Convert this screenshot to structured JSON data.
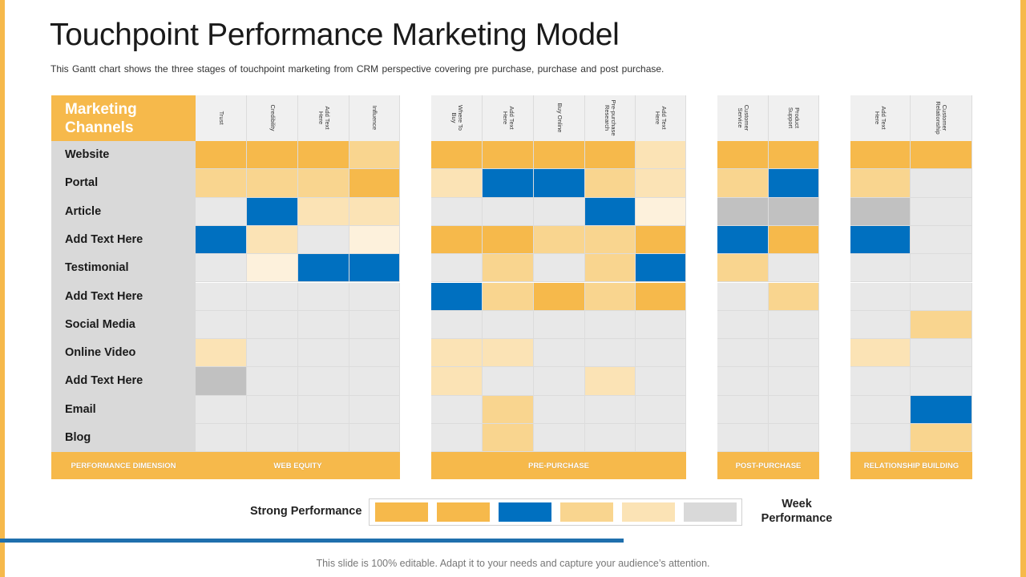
{
  "title": "Touchpoint Performance Marketing Model",
  "subtitle": "This Gantt chart shows the three stages of touchpoint marketing from CRM perspective covering pre purchase, purchase and post purchase.",
  "footer": "This slide is 100% editable. Adapt it to your needs and capture your audience’s attention.",
  "colors": {
    "accent": "#f6b94b",
    "strong_blue": "#0070c0",
    "light_orange": "#f9d58f",
    "pale_orange": "#fbe3b5",
    "cream": "#fdf1dc",
    "light_gray": "#e8e8e8",
    "mid_gray": "#c1c1c1",
    "progress_bar": "#1f6fad"
  },
  "chart_data": {
    "type": "heatmap",
    "corner_label": "Marketing Channels",
    "rows": [
      "Website",
      "Portal",
      "Article",
      "Add Text Here",
      "Testimonial",
      "Add Text Here",
      "Social Media",
      "Online Video",
      "Add Text Here",
      "Email",
      "Blog"
    ],
    "groups": [
      {
        "name": "WEB EQUITY",
        "columns": [
          "Trust",
          "Credibility",
          "Add Text Here",
          "Influence"
        ]
      },
      {
        "name": "PRE-PURCHASE",
        "columns": [
          "Where To Buy",
          "Add Text Here",
          "Buy Online",
          "Pre-purchase Research",
          "Add Text Here"
        ]
      },
      {
        "name": "POST-PURCHASE",
        "columns": [
          "Customer Service",
          "Product Support"
        ]
      },
      {
        "name": "RELATIONSHIP BUILDING",
        "columns": [
          "Add Text Here",
          "Customer Relationship"
        ]
      }
    ],
    "row_footer_label": "PERFORMANCE DIMENSION",
    "level_scale_note": "0 = no color, 1 = orange (strongest), 2 = blue, 3 = light orange, 4 = pale orange, 5 = cream, 6 = gray",
    "cells": [
      [
        1,
        1,
        1,
        3,
        1,
        1,
        1,
        1,
        4,
        1,
        1,
        1,
        1
      ],
      [
        3,
        3,
        3,
        1,
        4,
        2,
        2,
        3,
        4,
        3,
        2,
        3,
        0
      ],
      [
        0,
        2,
        4,
        4,
        0,
        0,
        0,
        2,
        5,
        6,
        6,
        6,
        0
      ],
      [
        2,
        4,
        0,
        5,
        1,
        1,
        3,
        3,
        1,
        2,
        1,
        2,
        0
      ],
      [
        0,
        5,
        2,
        2,
        0,
        3,
        0,
        3,
        2,
        3,
        0,
        0,
        0
      ],
      [
        0,
        0,
        0,
        0,
        2,
        3,
        1,
        3,
        1,
        0,
        3,
        0,
        0
      ],
      [
        0,
        0,
        0,
        0,
        0,
        0,
        0,
        0,
        0,
        0,
        0,
        0,
        3
      ],
      [
        4,
        0,
        0,
        0,
        4,
        4,
        0,
        0,
        0,
        0,
        0,
        4,
        0
      ],
      [
        6,
        0,
        0,
        0,
        4,
        0,
        0,
        4,
        0,
        0,
        0,
        0,
        0
      ],
      [
        0,
        0,
        0,
        0,
        0,
        3,
        0,
        0,
        0,
        0,
        0,
        0,
        2
      ],
      [
        0,
        0,
        0,
        0,
        0,
        3,
        0,
        0,
        0,
        0,
        0,
        0,
        3
      ]
    ],
    "legend": {
      "left_label": "Strong Performance",
      "right_label": "Week Performance",
      "swatches": [
        "orange",
        "orange",
        "blue",
        "light orange",
        "pale orange",
        "gray"
      ]
    }
  }
}
